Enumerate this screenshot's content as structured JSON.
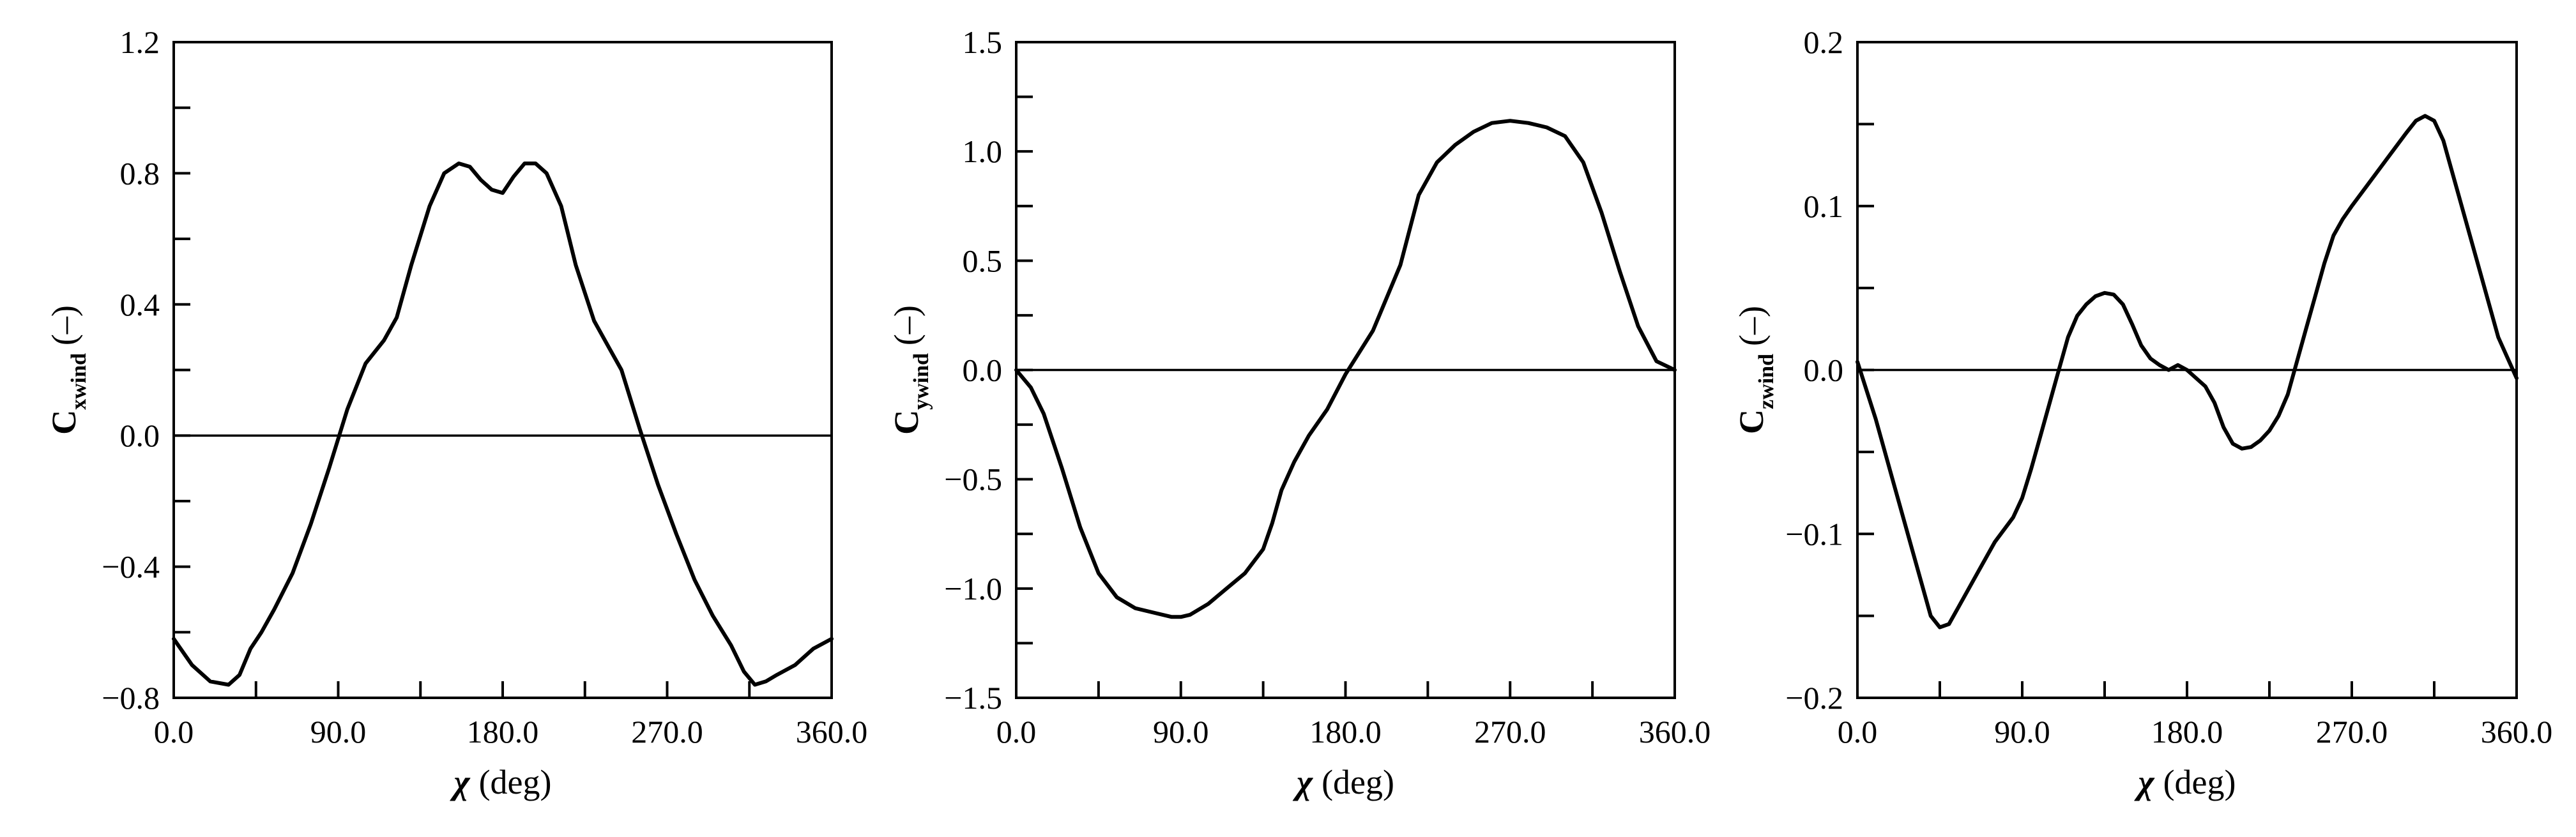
{
  "chart_data": [
    {
      "type": "line",
      "title": "",
      "xlabel": {
        "symbol": "χ",
        "unit": "(deg)"
      },
      "ylabel": {
        "main": "C",
        "subscript": "xwind",
        "unit": "(–)"
      },
      "xlim": [
        0,
        360
      ],
      "ylim": [
        -0.8,
        1.2
      ],
      "x_ticks": [
        0,
        90,
        180,
        270,
        360
      ],
      "x_tick_labels": [
        "0.0",
        "90.0",
        "180.0",
        "270.0",
        "360.0"
      ],
      "y_ticks": [
        -0.8,
        -0.4,
        0.0,
        0.4,
        0.8,
        1.2
      ],
      "y_tick_labels": [
        "−0.8",
        "−0.4",
        "0.0",
        "0.4",
        "0.8",
        "1.2"
      ],
      "zero_line": true,
      "grid": false,
      "series": [
        {
          "x": [
            0,
            10,
            20,
            30,
            36,
            42,
            48,
            55,
            65,
            75,
            85,
            95,
            105,
            115,
            122,
            130,
            140,
            148,
            156,
            162,
            168,
            174,
            180,
            186,
            192,
            198,
            204,
            212,
            220,
            230,
            238,
            245,
            255,
            265,
            275,
            285,
            295,
            305,
            312,
            318,
            324,
            330,
            340,
            350,
            360
          ],
          "y": [
            -0.62,
            -0.7,
            -0.75,
            -0.76,
            -0.73,
            -0.65,
            -0.6,
            -0.53,
            -0.42,
            -0.27,
            -0.1,
            0.08,
            0.22,
            0.29,
            0.36,
            0.52,
            0.7,
            0.8,
            0.83,
            0.82,
            0.78,
            0.75,
            0.74,
            0.79,
            0.83,
            0.83,
            0.8,
            0.7,
            0.52,
            0.35,
            0.27,
            0.2,
            0.02,
            -0.15,
            -0.3,
            -0.44,
            -0.55,
            -0.64,
            -0.72,
            -0.76,
            -0.75,
            -0.73,
            -0.7,
            -0.65,
            -0.62
          ]
        }
      ]
    },
    {
      "type": "line",
      "title": "",
      "xlabel": {
        "symbol": "χ",
        "unit": "(deg)"
      },
      "ylabel": {
        "main": "C",
        "subscript": "ywind",
        "unit": "(–)"
      },
      "xlim": [
        0,
        360
      ],
      "ylim": [
        -1.5,
        1.5
      ],
      "x_ticks": [
        0,
        90,
        180,
        270,
        360
      ],
      "x_tick_labels": [
        "0.0",
        "90.0",
        "180.0",
        "270.0",
        "360.0"
      ],
      "y_ticks": [
        -1.5,
        -1.0,
        -0.5,
        0.0,
        0.5,
        1.0,
        1.5
      ],
      "y_tick_labels": [
        "−1.5",
        "−1.0",
        "−0.5",
        "0.0",
        "0.5",
        "1.0",
        "1.5"
      ],
      "zero_line": true,
      "grid": false,
      "series": [
        {
          "x": [
            0,
            8,
            15,
            25,
            35,
            45,
            55,
            65,
            75,
            85,
            90,
            95,
            105,
            115,
            125,
            135,
            140,
            145,
            152,
            160,
            170,
            180,
            195,
            210,
            220,
            230,
            240,
            250,
            260,
            270,
            280,
            290,
            300,
            310,
            320,
            330,
            340,
            350,
            360
          ],
          "y": [
            0,
            -0.08,
            -0.2,
            -0.45,
            -0.72,
            -0.93,
            -1.04,
            -1.09,
            -1.11,
            -1.13,
            -1.13,
            -1.12,
            -1.07,
            -1.0,
            -0.93,
            -0.82,
            -0.7,
            -0.55,
            -0.42,
            -0.3,
            -0.18,
            -0.02,
            0.18,
            0.48,
            0.8,
            0.95,
            1.03,
            1.09,
            1.13,
            1.14,
            1.13,
            1.11,
            1.07,
            0.95,
            0.72,
            0.45,
            0.2,
            0.04,
            0
          ]
        }
      ]
    },
    {
      "type": "line",
      "title": "",
      "xlabel": {
        "symbol": "χ",
        "unit": "(deg)"
      },
      "ylabel": {
        "main": "C",
        "subscript": "zwind",
        "unit": "(–)"
      },
      "xlim": [
        0,
        360
      ],
      "ylim": [
        -0.2,
        0.2
      ],
      "x_ticks": [
        0,
        90,
        180,
        270,
        360
      ],
      "x_tick_labels": [
        "0.0",
        "90.0",
        "180.0",
        "270.0",
        "360.0"
      ],
      "y_ticks": [
        -0.2,
        -0.1,
        0.0,
        0.1,
        0.2
      ],
      "y_tick_labels": [
        "−0.2",
        "−0.1",
        "0.0",
        "0.1",
        "0.2"
      ],
      "zero_line": true,
      "grid": false,
      "series": [
        {
          "x": [
            0,
            10,
            20,
            30,
            40,
            45,
            50,
            55,
            65,
            75,
            85,
            90,
            95,
            100,
            105,
            110,
            115,
            120,
            125,
            130,
            135,
            140,
            145,
            150,
            155,
            160,
            165,
            170,
            175,
            180,
            185,
            190,
            195,
            200,
            205,
            210,
            215,
            220,
            225,
            230,
            235,
            240,
            245,
            250,
            255,
            260,
            265,
            270,
            280,
            290,
            300,
            305,
            310,
            315,
            320,
            330,
            340,
            350,
            360
          ],
          "y": [
            0.005,
            -0.03,
            -0.07,
            -0.11,
            -0.15,
            -0.157,
            -0.155,
            -0.145,
            -0.125,
            -0.105,
            -0.09,
            -0.078,
            -0.06,
            -0.04,
            -0.02,
            0.0,
            0.02,
            0.033,
            0.04,
            0.045,
            0.047,
            0.046,
            0.04,
            0.028,
            0.015,
            0.007,
            0.003,
            0.0,
            0.003,
            0.0,
            -0.005,
            -0.01,
            -0.02,
            -0.035,
            -0.045,
            -0.048,
            -0.047,
            -0.043,
            -0.037,
            -0.028,
            -0.015,
            0.005,
            0.025,
            0.045,
            0.065,
            0.082,
            0.092,
            0.1,
            0.115,
            0.13,
            0.145,
            0.152,
            0.155,
            0.152,
            0.14,
            0.1,
            0.06,
            0.02,
            -0.005
          ]
        }
      ]
    }
  ]
}
